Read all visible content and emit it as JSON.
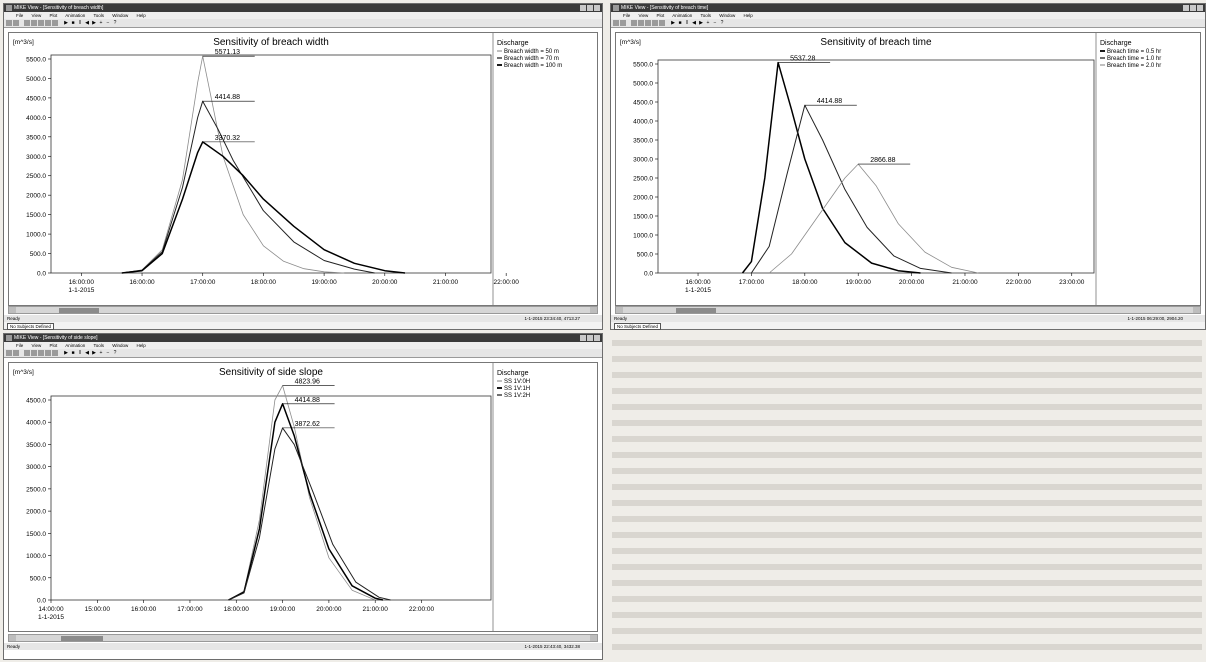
{
  "windows": [
    {
      "window_title": "MIKE View - [Sensitivity of breach width]",
      "status_text": "Ready",
      "status_time": "1-1-2015 23:34:40, 4713.27",
      "subject_tag": "No Subjects Defined"
    },
    {
      "window_title": "MIKE View - [Sensitivity of breach time]",
      "status_text": "Ready",
      "status_time": "1-1-2015 06:29:00, 2904.20",
      "subject_tag": "No Subjects Defined"
    },
    {
      "window_title": "MIKE View - [Sensitivity of side slope]",
      "status_text": "Ready",
      "status_time": "1-1-2015 22:43:40, 3432.38",
      "subject_tag": ""
    }
  ],
  "menu_items": [
    "File",
    "View",
    "Plot",
    "Animation",
    "Tools",
    "Window",
    "Help"
  ],
  "colors": {
    "thick": "#000000",
    "medium": "#222222",
    "thin": "#8c8c8c"
  },
  "chart_data": [
    {
      "type": "line",
      "title": "Sensitivity of breach width",
      "ylabel": "[m^3/s]",
      "legend_title": "Discharge",
      "legend_position": "right",
      "ylim": [
        0,
        5500
      ],
      "y_ticks": [
        "0.0",
        "500.0",
        "1000.0",
        "1500.0",
        "2000.0",
        "2500.0",
        "3000.0",
        "3500.0",
        "4000.0",
        "4500.0",
        "5000.0",
        "5500.0"
      ],
      "x_ticks": [
        "16:00:00",
        "16:00:00",
        "17:00:00",
        "18:00:00",
        "19:00:00",
        "20:00:00",
        "21:00:00",
        "22:00:00"
      ],
      "x_date_label": "1-1-2015",
      "xlim": [
        "1-1-2015 15:30:00",
        "1-1-2015 22:45:00"
      ],
      "grid": false,
      "series": [
        {
          "name": "Breach width = 50 m",
          "style": "thin",
          "x": [
            "1-1-2015 16:40",
            "1-1-2015 17:00",
            "1-1-2015 17:20",
            "1-1-2015 17:40",
            "1-1-2015 17:55",
            "1-1-2015 18:00",
            "1-1-2015 18:10",
            "1-1-2015 18:20",
            "1-1-2015 18:40",
            "1-1-2015 19:00",
            "1-1-2015 19:20",
            "1-1-2015 19:40",
            "1-1-2015 20:00",
            "1-1-2015 20:20"
          ],
          "values": [
            0,
            80,
            600,
            2400,
            4900,
            5571.13,
            4300,
            3000,
            1500,
            700,
            300,
            110,
            30,
            0
          ]
        },
        {
          "name": "Breach width = 70 m",
          "style": "medium",
          "x": [
            "1-1-2015 16:40",
            "1-1-2015 17:00",
            "1-1-2015 17:20",
            "1-1-2015 17:40",
            "1-1-2015 17:55",
            "1-1-2015 18:00",
            "1-1-2015 18:15",
            "1-1-2015 18:30",
            "1-1-2015 19:00",
            "1-1-2015 19:30",
            "1-1-2015 20:00",
            "1-1-2015 20:30",
            "1-1-2015 20:50"
          ],
          "values": [
            0,
            70,
            550,
            2200,
            4000,
            4414.88,
            3700,
            2900,
            1600,
            800,
            320,
            100,
            0
          ]
        },
        {
          "name": "Breach width = 100 m",
          "style": "thick",
          "x": [
            "1-1-2015 16:40",
            "1-1-2015 17:00",
            "1-1-2015 17:20",
            "1-1-2015 17:40",
            "1-1-2015 17:55",
            "1-1-2015 18:00",
            "1-1-2015 18:20",
            "1-1-2015 18:40",
            "1-1-2015 19:00",
            "1-1-2015 19:30",
            "1-1-2015 20:00",
            "1-1-2015 20:30",
            "1-1-2015 21:00",
            "1-1-2015 21:20"
          ],
          "values": [
            0,
            60,
            500,
            1900,
            3100,
            3370.32,
            3000,
            2500,
            1900,
            1200,
            600,
            250,
            60,
            0
          ]
        }
      ],
      "annotations": [
        {
          "text": "5571.13",
          "x": "1-1-2015 18:00",
          "y": 5571.13
        },
        {
          "text": "4414.88",
          "x": "1-1-2015 18:00",
          "y": 4414.88
        },
        {
          "text": "3370.32",
          "x": "1-1-2015 18:00",
          "y": 3370.32
        }
      ]
    },
    {
      "type": "line",
      "title": "Sensitivity of breach time",
      "ylabel": "[m^3/s]",
      "legend_title": "Discharge",
      "legend_position": "right",
      "ylim": [
        0,
        5500
      ],
      "y_ticks": [
        "0.0",
        "500.0",
        "1000.0",
        "1500.0",
        "2000.0",
        "2500.0",
        "3000.0",
        "3500.0",
        "4000.0",
        "4500.0",
        "5000.0",
        "5500.0"
      ],
      "x_ticks": [
        "16:00:00",
        "17:00:00",
        "18:00:00",
        "19:00:00",
        "20:00:00",
        "21:00:00",
        "22:00:00",
        "23:00:00"
      ],
      "x_date_label": "1-1-2015",
      "xlim": [
        "1-1-2015 15:15:00",
        "1-1-2015 23:25:00"
      ],
      "grid": false,
      "series": [
        {
          "name": "Breach time = 0.5 hr",
          "style": "thick",
          "x": [
            "1-1-2015 16:50",
            "1-1-2015 17:00",
            "1-1-2015 17:15",
            "1-1-2015 17:30",
            "1-1-2015 17:45",
            "1-1-2015 18:00",
            "1-1-2015 18:20",
            "1-1-2015 18:45",
            "1-1-2015 19:15",
            "1-1-2015 19:45",
            "1-1-2015 20:10"
          ],
          "values": [
            0,
            300,
            2500,
            5537.28,
            4300,
            3000,
            1700,
            800,
            260,
            60,
            0
          ]
        },
        {
          "name": "Breach time = 1.0 hr",
          "style": "medium",
          "x": [
            "1-1-2015 17:00",
            "1-1-2015 17:20",
            "1-1-2015 17:40",
            "1-1-2015 18:00",
            "1-1-2015 18:20",
            "1-1-2015 18:45",
            "1-1-2015 19:10",
            "1-1-2015 19:40",
            "1-1-2015 20:10",
            "1-1-2015 20:45"
          ],
          "values": [
            0,
            700,
            2600,
            4414.88,
            3500,
            2200,
            1200,
            450,
            120,
            0
          ]
        },
        {
          "name": "Breach time = 2.0 hr",
          "style": "thin",
          "x": [
            "1-1-2015 17:20",
            "1-1-2015 17:45",
            "1-1-2015 18:15",
            "1-1-2015 18:45",
            "1-1-2015 19:00",
            "1-1-2015 19:20",
            "1-1-2015 19:45",
            "1-1-2015 20:15",
            "1-1-2015 20:45",
            "1-1-2015 21:15"
          ],
          "values": [
            0,
            500,
            1500,
            2500,
            2866.88,
            2300,
            1300,
            550,
            150,
            0
          ]
        }
      ],
      "annotations": [
        {
          "text": "5537.28",
          "x": "1-1-2015 17:30",
          "y": 5537.28
        },
        {
          "text": "4414.88",
          "x": "1-1-2015 18:00",
          "y": 4414.88
        },
        {
          "text": "2866.88",
          "x": "1-1-2015 19:00",
          "y": 2866.88
        }
      ]
    },
    {
      "type": "line",
      "title": "Sensitivity of side slope",
      "ylabel": "[m^3/s]",
      "legend_title": "Discharge",
      "legend_position": "right",
      "ylim": [
        0,
        4500
      ],
      "y_ticks": [
        "0.0",
        "500.0",
        "1000.0",
        "1500.0",
        "2000.0",
        "2500.0",
        "3000.0",
        "3500.0",
        "4000.0",
        "4500.0"
      ],
      "x_ticks": [
        "14:00:00",
        "15:00:00",
        "16:00:00",
        "17:00:00",
        "18:00:00",
        "19:00:00",
        "20:00:00",
        "21:00:00",
        "22:00:00"
      ],
      "x_date_label": "1-1-2015",
      "xlim": [
        "1-1-2015 13:00:00",
        "1-1-2015 22:30:00"
      ],
      "grid": false,
      "series": [
        {
          "name": "SS 1V:0H",
          "style": "thin",
          "x": [
            "1-1-2015 16:50",
            "1-1-2015 17:10",
            "1-1-2015 17:30",
            "1-1-2015 17:50",
            "1-1-2015 18:00",
            "1-1-2015 18:15",
            "1-1-2015 18:35",
            "1-1-2015 19:00",
            "1-1-2015 19:30",
            "1-1-2015 20:00"
          ],
          "values": [
            0,
            200,
            1800,
            4500,
            4823.96,
            3900,
            2300,
            950,
            220,
            0
          ]
        },
        {
          "name": "SS 1V:1H",
          "style": "thick",
          "x": [
            "1-1-2015 16:50",
            "1-1-2015 17:10",
            "1-1-2015 17:30",
            "1-1-2015 17:50",
            "1-1-2015 18:00",
            "1-1-2015 18:15",
            "1-1-2015 18:35",
            "1-1-2015 19:00",
            "1-1-2015 19:30",
            "1-1-2015 20:00",
            "1-1-2015 20:10"
          ],
          "values": [
            0,
            180,
            1600,
            4000,
            4414.88,
            3700,
            2400,
            1150,
            320,
            40,
            0
          ]
        },
        {
          "name": "SS 1V:2H",
          "style": "medium",
          "x": [
            "1-1-2015 16:50",
            "1-1-2015 17:10",
            "1-1-2015 17:30",
            "1-1-2015 17:50",
            "1-1-2015 18:00",
            "1-1-2015 18:15",
            "1-1-2015 18:40",
            "1-1-2015 19:05",
            "1-1-2015 19:35",
            "1-1-2015 20:05",
            "1-1-2015 20:20"
          ],
          "values": [
            0,
            160,
            1400,
            3400,
            3872.62,
            3500,
            2400,
            1250,
            400,
            60,
            0
          ]
        }
      ],
      "annotations": [
        {
          "text": "4823.96",
          "x": "1-1-2015 18:00",
          "y": 4823.96
        },
        {
          "text": "4414.88",
          "x": "1-1-2015 18:00",
          "y": 4414.88
        },
        {
          "text": "3872.62",
          "x": "1-1-2015 18:00",
          "y": 3872.62
        }
      ]
    }
  ]
}
